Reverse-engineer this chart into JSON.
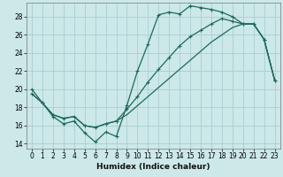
{
  "xlabel": "Humidex (Indice chaleur)",
  "background_color": "#cce8e8",
  "grid_color": "#aacece",
  "line_color": "#1a6b5a",
  "xlim": [
    -0.5,
    23.5
  ],
  "ylim": [
    13.5,
    29.5
  ],
  "xticks": [
    0,
    1,
    2,
    3,
    4,
    5,
    6,
    7,
    8,
    9,
    10,
    11,
    12,
    13,
    14,
    15,
    16,
    17,
    18,
    19,
    20,
    21,
    22,
    23
  ],
  "yticks": [
    14,
    16,
    18,
    20,
    22,
    24,
    26,
    28
  ],
  "series1_x": [
    0,
    1,
    2,
    3,
    4,
    5,
    6,
    7,
    8,
    9,
    10,
    11,
    12,
    13,
    14,
    15,
    16,
    17,
    18,
    19,
    20,
    21,
    22,
    23
  ],
  "series1_y": [
    20.0,
    18.5,
    17.0,
    16.2,
    16.5,
    15.2,
    14.2,
    15.3,
    14.8,
    18.2,
    22.0,
    25.0,
    28.2,
    28.5,
    28.3,
    29.2,
    29.0,
    28.8,
    28.5,
    28.0,
    27.2,
    27.2,
    25.5,
    21.0
  ],
  "series2_x": [
    0,
    1,
    2,
    3,
    4,
    5,
    6,
    7,
    8,
    9,
    10,
    11,
    12,
    13,
    14,
    15,
    16,
    17,
    18,
    19,
    20,
    21,
    22,
    23
  ],
  "series2_y": [
    19.5,
    18.5,
    17.2,
    16.8,
    17.0,
    16.0,
    15.8,
    16.2,
    16.5,
    17.8,
    19.2,
    20.8,
    22.2,
    23.5,
    24.8,
    25.8,
    26.5,
    27.2,
    27.8,
    27.5,
    27.2,
    27.2,
    25.5,
    21.0
  ],
  "series3_x": [
    0,
    1,
    2,
    3,
    4,
    5,
    6,
    7,
    8,
    9,
    10,
    11,
    12,
    13,
    14,
    15,
    16,
    17,
    18,
    19,
    20,
    21,
    22,
    23
  ],
  "series3_y": [
    19.5,
    18.5,
    17.2,
    16.8,
    17.0,
    16.0,
    15.8,
    16.2,
    16.5,
    17.2,
    18.2,
    19.2,
    20.2,
    21.2,
    22.2,
    23.2,
    24.2,
    25.2,
    26.0,
    26.8,
    27.2,
    27.2,
    25.5,
    21.0
  ],
  "markersize": 3,
  "linewidth": 0.9,
  "label_fontsize": 6.5,
  "tick_fontsize": 5.5
}
